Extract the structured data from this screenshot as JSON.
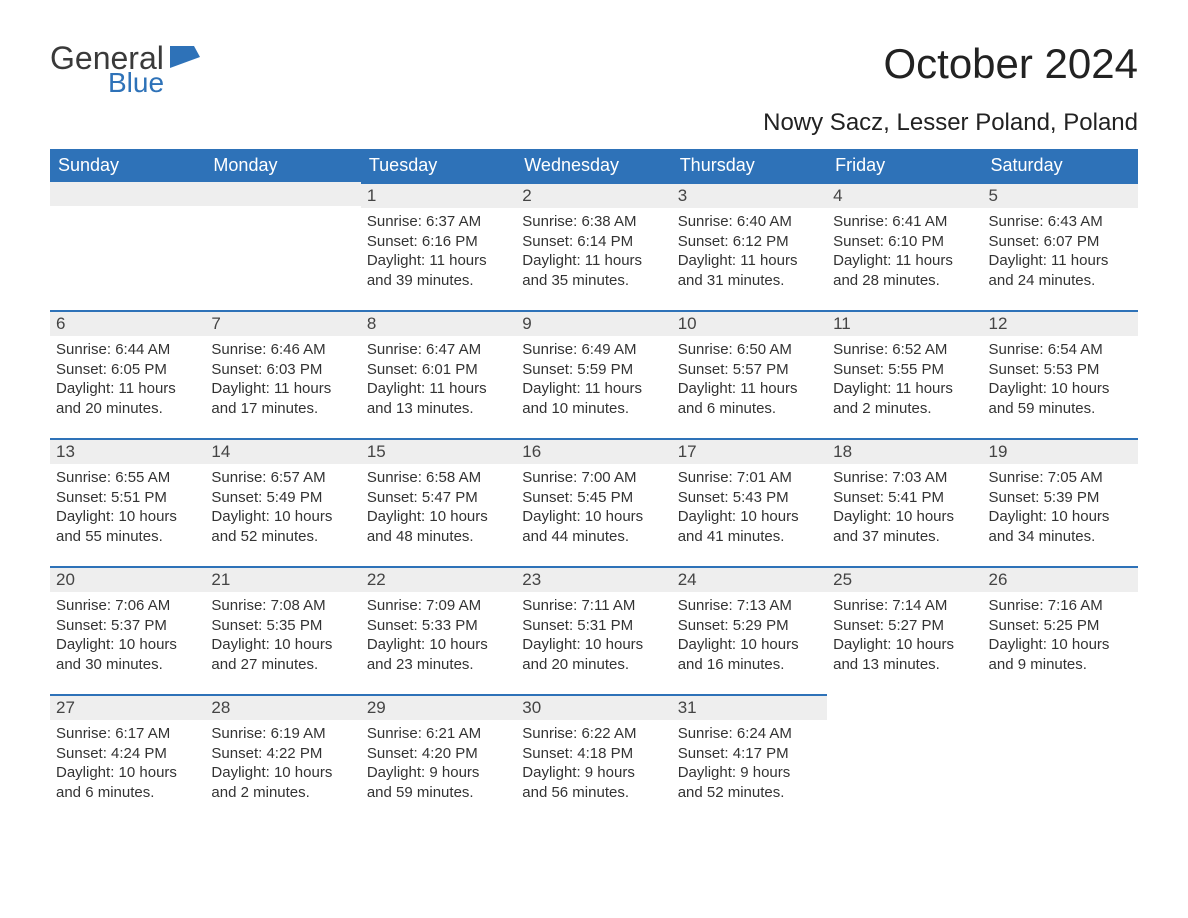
{
  "logo": {
    "text1": "General",
    "text2": "Blue",
    "icon_color": "#2e72b8",
    "text1_color": "#3a3a3a"
  },
  "title": "October 2024",
  "subtitle": "Nowy Sacz, Lesser Poland, Poland",
  "colors": {
    "header_bg": "#2e72b8",
    "header_text": "#ffffff",
    "daynum_bg": "#eeeeee",
    "border": "#2e72b8",
    "body_bg": "#ffffff",
    "text": "#333333"
  },
  "weekdays": [
    "Sunday",
    "Monday",
    "Tuesday",
    "Wednesday",
    "Thursday",
    "Friday",
    "Saturday"
  ],
  "weeks": [
    [
      null,
      null,
      {
        "n": "1",
        "sunrise": "Sunrise: 6:37 AM",
        "sunset": "Sunset: 6:16 PM",
        "day1": "Daylight: 11 hours",
        "day2": "and 39 minutes."
      },
      {
        "n": "2",
        "sunrise": "Sunrise: 6:38 AM",
        "sunset": "Sunset: 6:14 PM",
        "day1": "Daylight: 11 hours",
        "day2": "and 35 minutes."
      },
      {
        "n": "3",
        "sunrise": "Sunrise: 6:40 AM",
        "sunset": "Sunset: 6:12 PM",
        "day1": "Daylight: 11 hours",
        "day2": "and 31 minutes."
      },
      {
        "n": "4",
        "sunrise": "Sunrise: 6:41 AM",
        "sunset": "Sunset: 6:10 PM",
        "day1": "Daylight: 11 hours",
        "day2": "and 28 minutes."
      },
      {
        "n": "5",
        "sunrise": "Sunrise: 6:43 AM",
        "sunset": "Sunset: 6:07 PM",
        "day1": "Daylight: 11 hours",
        "day2": "and 24 minutes."
      }
    ],
    [
      {
        "n": "6",
        "sunrise": "Sunrise: 6:44 AM",
        "sunset": "Sunset: 6:05 PM",
        "day1": "Daylight: 11 hours",
        "day2": "and 20 minutes."
      },
      {
        "n": "7",
        "sunrise": "Sunrise: 6:46 AM",
        "sunset": "Sunset: 6:03 PM",
        "day1": "Daylight: 11 hours",
        "day2": "and 17 minutes."
      },
      {
        "n": "8",
        "sunrise": "Sunrise: 6:47 AM",
        "sunset": "Sunset: 6:01 PM",
        "day1": "Daylight: 11 hours",
        "day2": "and 13 minutes."
      },
      {
        "n": "9",
        "sunrise": "Sunrise: 6:49 AM",
        "sunset": "Sunset: 5:59 PM",
        "day1": "Daylight: 11 hours",
        "day2": "and 10 minutes."
      },
      {
        "n": "10",
        "sunrise": "Sunrise: 6:50 AM",
        "sunset": "Sunset: 5:57 PM",
        "day1": "Daylight: 11 hours",
        "day2": "and 6 minutes."
      },
      {
        "n": "11",
        "sunrise": "Sunrise: 6:52 AM",
        "sunset": "Sunset: 5:55 PM",
        "day1": "Daylight: 11 hours",
        "day2": "and 2 minutes."
      },
      {
        "n": "12",
        "sunrise": "Sunrise: 6:54 AM",
        "sunset": "Sunset: 5:53 PM",
        "day1": "Daylight: 10 hours",
        "day2": "and 59 minutes."
      }
    ],
    [
      {
        "n": "13",
        "sunrise": "Sunrise: 6:55 AM",
        "sunset": "Sunset: 5:51 PM",
        "day1": "Daylight: 10 hours",
        "day2": "and 55 minutes."
      },
      {
        "n": "14",
        "sunrise": "Sunrise: 6:57 AM",
        "sunset": "Sunset: 5:49 PM",
        "day1": "Daylight: 10 hours",
        "day2": "and 52 minutes."
      },
      {
        "n": "15",
        "sunrise": "Sunrise: 6:58 AM",
        "sunset": "Sunset: 5:47 PM",
        "day1": "Daylight: 10 hours",
        "day2": "and 48 minutes."
      },
      {
        "n": "16",
        "sunrise": "Sunrise: 7:00 AM",
        "sunset": "Sunset: 5:45 PM",
        "day1": "Daylight: 10 hours",
        "day2": "and 44 minutes."
      },
      {
        "n": "17",
        "sunrise": "Sunrise: 7:01 AM",
        "sunset": "Sunset: 5:43 PM",
        "day1": "Daylight: 10 hours",
        "day2": "and 41 minutes."
      },
      {
        "n": "18",
        "sunrise": "Sunrise: 7:03 AM",
        "sunset": "Sunset: 5:41 PM",
        "day1": "Daylight: 10 hours",
        "day2": "and 37 minutes."
      },
      {
        "n": "19",
        "sunrise": "Sunrise: 7:05 AM",
        "sunset": "Sunset: 5:39 PM",
        "day1": "Daylight: 10 hours",
        "day2": "and 34 minutes."
      }
    ],
    [
      {
        "n": "20",
        "sunrise": "Sunrise: 7:06 AM",
        "sunset": "Sunset: 5:37 PM",
        "day1": "Daylight: 10 hours",
        "day2": "and 30 minutes."
      },
      {
        "n": "21",
        "sunrise": "Sunrise: 7:08 AM",
        "sunset": "Sunset: 5:35 PM",
        "day1": "Daylight: 10 hours",
        "day2": "and 27 minutes."
      },
      {
        "n": "22",
        "sunrise": "Sunrise: 7:09 AM",
        "sunset": "Sunset: 5:33 PM",
        "day1": "Daylight: 10 hours",
        "day2": "and 23 minutes."
      },
      {
        "n": "23",
        "sunrise": "Sunrise: 7:11 AM",
        "sunset": "Sunset: 5:31 PM",
        "day1": "Daylight: 10 hours",
        "day2": "and 20 minutes."
      },
      {
        "n": "24",
        "sunrise": "Sunrise: 7:13 AM",
        "sunset": "Sunset: 5:29 PM",
        "day1": "Daylight: 10 hours",
        "day2": "and 16 minutes."
      },
      {
        "n": "25",
        "sunrise": "Sunrise: 7:14 AM",
        "sunset": "Sunset: 5:27 PM",
        "day1": "Daylight: 10 hours",
        "day2": "and 13 minutes."
      },
      {
        "n": "26",
        "sunrise": "Sunrise: 7:16 AM",
        "sunset": "Sunset: 5:25 PM",
        "day1": "Daylight: 10 hours",
        "day2": "and 9 minutes."
      }
    ],
    [
      {
        "n": "27",
        "sunrise": "Sunrise: 6:17 AM",
        "sunset": "Sunset: 4:24 PM",
        "day1": "Daylight: 10 hours",
        "day2": "and 6 minutes."
      },
      {
        "n": "28",
        "sunrise": "Sunrise: 6:19 AM",
        "sunset": "Sunset: 4:22 PM",
        "day1": "Daylight: 10 hours",
        "day2": "and 2 minutes."
      },
      {
        "n": "29",
        "sunrise": "Sunrise: 6:21 AM",
        "sunset": "Sunset: 4:20 PM",
        "day1": "Daylight: 9 hours",
        "day2": "and 59 minutes."
      },
      {
        "n": "30",
        "sunrise": "Sunrise: 6:22 AM",
        "sunset": "Sunset: 4:18 PM",
        "day1": "Daylight: 9 hours",
        "day2": "and 56 minutes."
      },
      {
        "n": "31",
        "sunrise": "Sunrise: 6:24 AM",
        "sunset": "Sunset: 4:17 PM",
        "day1": "Daylight: 9 hours",
        "day2": "and 52 minutes."
      },
      null,
      null
    ]
  ]
}
